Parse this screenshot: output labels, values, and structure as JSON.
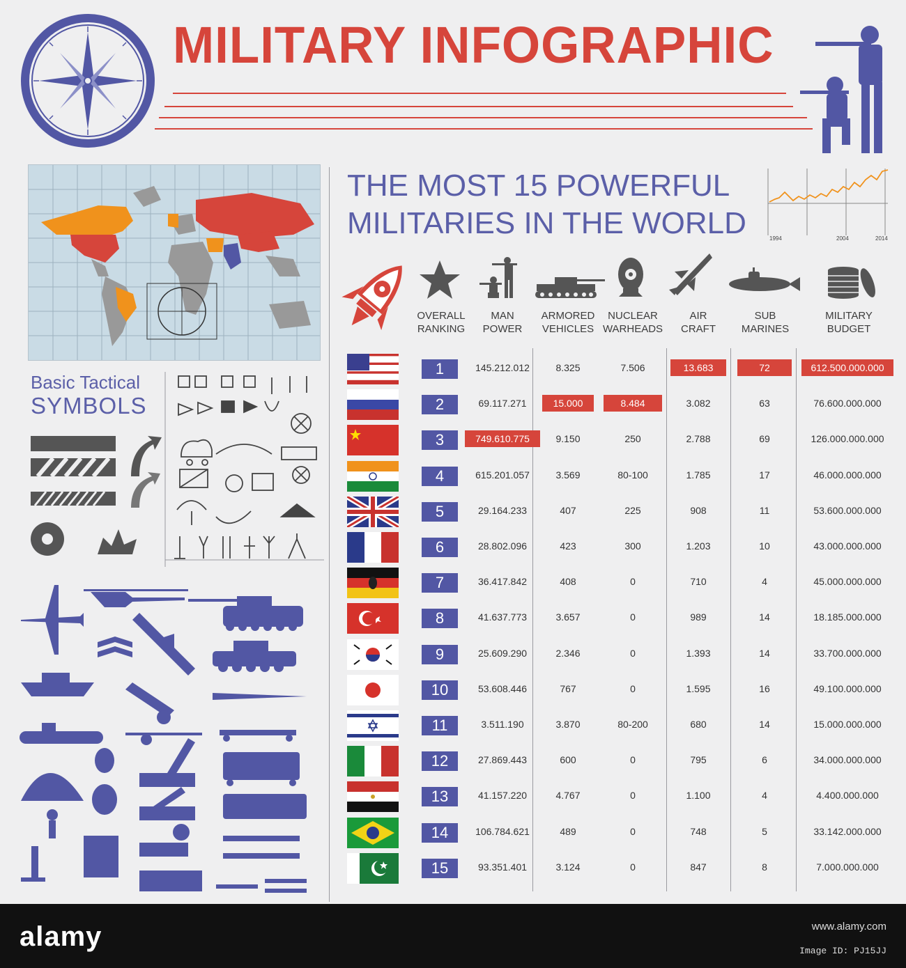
{
  "header": {
    "title": "MILITARY INFOGRAPHIC"
  },
  "colors": {
    "accent_red": "#d6453b",
    "accent_blue": "#5257a4",
    "text_blue": "#5b5fa8",
    "icon_gray": "#555555",
    "map_sea": "#c9dbe5"
  },
  "icons": [
    "compass-icon",
    "soldier-silhouette-icon",
    "world-map",
    "rocket-icon",
    "star-icon",
    "soldiers-icon",
    "tank-icon",
    "nuclear-warhead-icon",
    "aircraft-icon",
    "submarine-icon",
    "coins-icon"
  ],
  "section": {
    "heading_line1": "THE MOST 15 POWERFUL",
    "heading_line2": "MILITARIES IN THE WORLD",
    "mini_chart_years": [
      "1994",
      "2004",
      "2014"
    ]
  },
  "tactical": {
    "line1": "Basic Tactical",
    "line2": "SYMBOLS"
  },
  "columns": {
    "rank": [
      "OVERALL",
      "RANKING"
    ],
    "man": [
      "MAN",
      "POWER"
    ],
    "armor": [
      "ARMORED",
      "VEHICLES"
    ],
    "nuke": [
      "NUCLEAR",
      "WARHEADS"
    ],
    "air": [
      "AIR",
      "CRAFT"
    ],
    "sub": [
      "SUB",
      "MARINES"
    ],
    "budget": [
      "MILITARY",
      "BUDGET"
    ]
  },
  "rows": [
    {
      "rank": "1",
      "flag": "usa",
      "man": "145.212.012",
      "armor": "8.325",
      "nuke": "7.506",
      "air": "13.683",
      "sub": "72",
      "budget": "612.500.000.000"
    },
    {
      "rank": "2",
      "flag": "russia",
      "man": "69.117.271",
      "armor": "15.000",
      "nuke": "8.484",
      "air": "3.082",
      "sub": "63",
      "budget": "76.600.000.000"
    },
    {
      "rank": "3",
      "flag": "china",
      "man": "749.610.775",
      "armor": "9.150",
      "nuke": "250",
      "air": "2.788",
      "sub": "69",
      "budget": "126.000.000.000"
    },
    {
      "rank": "4",
      "flag": "india",
      "man": "615.201.057",
      "armor": "3.569",
      "nuke": "80-100",
      "air": "1.785",
      "sub": "17",
      "budget": "46.000.000.000"
    },
    {
      "rank": "5",
      "flag": "uk",
      "man": "29.164.233",
      "armor": "407",
      "nuke": "225",
      "air": "908",
      "sub": "11",
      "budget": "53.600.000.000"
    },
    {
      "rank": "6",
      "flag": "france",
      "man": "28.802.096",
      "armor": "423",
      "nuke": "300",
      "air": "1.203",
      "sub": "10",
      "budget": "43.000.000.000"
    },
    {
      "rank": "7",
      "flag": "germany",
      "man": "36.417.842",
      "armor": "408",
      "nuke": "0",
      "air": "710",
      "sub": "4",
      "budget": "45.000.000.000"
    },
    {
      "rank": "8",
      "flag": "turkey",
      "man": "41.637.773",
      "armor": "3.657",
      "nuke": "0",
      "air": "989",
      "sub": "14",
      "budget": "18.185.000.000"
    },
    {
      "rank": "9",
      "flag": "korea",
      "man": "25.609.290",
      "armor": "2.346",
      "nuke": "0",
      "air": "1.393",
      "sub": "14",
      "budget": "33.700.000.000"
    },
    {
      "rank": "10",
      "flag": "japan",
      "man": "53.608.446",
      "armor": "767",
      "nuke": "0",
      "air": "1.595",
      "sub": "16",
      "budget": "49.100.000.000"
    },
    {
      "rank": "11",
      "flag": "israel",
      "man": "3.511.190",
      "armor": "3.870",
      "nuke": "80-200",
      "air": "680",
      "sub": "14",
      "budget": "15.000.000.000"
    },
    {
      "rank": "12",
      "flag": "italy",
      "man": "27.869.443",
      "armor": "600",
      "nuke": "0",
      "air": "795",
      "sub": "6",
      "budget": "34.000.000.000"
    },
    {
      "rank": "13",
      "flag": "egypt",
      "man": "41.157.220",
      "armor": "4.767",
      "nuke": "0",
      "air": "1.100",
      "sub": "4",
      "budget": "4.400.000.000"
    },
    {
      "rank": "14",
      "flag": "brazil",
      "man": "106.784.621",
      "armor": "489",
      "nuke": "0",
      "air": "748",
      "sub": "5",
      "budget": "33.142.000.000"
    },
    {
      "rank": "15",
      "flag": "pakistan",
      "man": "93.351.401",
      "armor": "3.124",
      "nuke": "0",
      "air": "847",
      "sub": "8",
      "budget": "7.000.000.000"
    }
  ],
  "highlights": [
    {
      "row": 0,
      "col": "air"
    },
    {
      "row": 0,
      "col": "sub"
    },
    {
      "row": 0,
      "col": "budget"
    },
    {
      "row": 1,
      "col": "armor"
    },
    {
      "row": 1,
      "col": "nuke"
    },
    {
      "row": 2,
      "col": "man"
    }
  ],
  "footer": {
    "brand": "alamy",
    "image_id": "Image ID: PJ15JJ",
    "site": "www.alamy.com"
  }
}
